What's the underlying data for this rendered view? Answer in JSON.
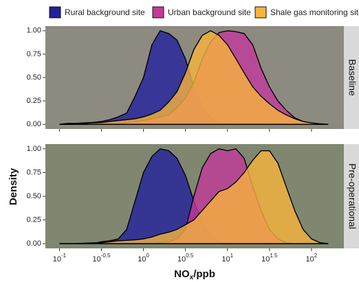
{
  "chart_data": {
    "type": "density",
    "x_label": [
      "NO",
      "x",
      "/ppb"
    ],
    "y_label": "Density",
    "log_x": true,
    "xlim": [
      0.068,
      243
    ],
    "xticks": [
      {
        "value": 0.1,
        "label": "10",
        "exponent": "-1"
      },
      {
        "value": 0.316,
        "label": "10",
        "exponent": "-0.5"
      },
      {
        "value": 1,
        "label": "10",
        "exponent": "0"
      },
      {
        "value": 3.16,
        "label": "10",
        "exponent": "0.5"
      },
      {
        "value": 10,
        "label": "10",
        "exponent": "1"
      },
      {
        "value": 31.6,
        "label": "10",
        "exponent": "1.5"
      },
      {
        "value": 100,
        "label": "10",
        "exponent": "2"
      }
    ],
    "ylim": [
      -0.05,
      1.05
    ],
    "yticks": [
      {
        "value": 0,
        "label": "0.00"
      },
      {
        "value": 0.25,
        "label": "0.25"
      },
      {
        "value": 0.5,
        "label": "0.50"
      },
      {
        "value": 0.75,
        "label": "0.75"
      },
      {
        "value": 1,
        "label": "1.00"
      }
    ],
    "series": [
      {
        "name": "Rural background site",
        "color": "#23209c"
      },
      {
        "name": "Urban background site",
        "color": "#c23a9b"
      },
      {
        "name": "Shale gas monitoring site",
        "color": "#f7b43c"
      }
    ],
    "x": [
      0.1,
      0.126,
      0.158,
      0.2,
      0.251,
      0.316,
      0.398,
      0.501,
      0.631,
      0.794,
      1,
      1.26,
      1.58,
      2,
      2.51,
      3.16,
      3.98,
      5.01,
      6.31,
      7.94,
      10,
      12.6,
      15.8,
      20,
      25.1,
      31.6,
      39.8,
      50.1,
      63.1,
      79.4,
      100,
      126,
      158
    ],
    "panels": [
      {
        "label": "Baseline",
        "values": [
          [
            0,
            0.005,
            0.01,
            0.015,
            0.02,
            0.03,
            0.05,
            0.08,
            0.12,
            0.3,
            0.5,
            0.85,
            1.0,
            0.97,
            0.9,
            0.7,
            0.4,
            0.18,
            0.07,
            0.02,
            0.005,
            0,
            0,
            0,
            0,
            0,
            0,
            0,
            0,
            0,
            0,
            0,
            0
          ],
          [
            0,
            0,
            0,
            0,
            0,
            0,
            0,
            0,
            0.02,
            0.03,
            0.04,
            0.06,
            0.08,
            0.1,
            0.18,
            0.28,
            0.45,
            0.7,
            0.88,
            0.98,
            1.0,
            0.99,
            0.97,
            0.85,
            0.6,
            0.4,
            0.25,
            0.15,
            0.07,
            0.03,
            0.01,
            0,
            0
          ],
          [
            0,
            0.01,
            0.01,
            0.01,
            0.015,
            0.02,
            0.03,
            0.04,
            0.05,
            0.06,
            0.08,
            0.11,
            0.15,
            0.24,
            0.35,
            0.55,
            0.8,
            0.95,
            1.0,
            0.95,
            0.85,
            0.7,
            0.55,
            0.4,
            0.3,
            0.22,
            0.15,
            0.1,
            0.06,
            0.03,
            0.015,
            0.005,
            0
          ]
        ]
      },
      {
        "label": "Pre-operational",
        "values": [
          [
            0,
            0,
            0,
            0,
            0,
            0.02,
            0.03,
            0.05,
            0.15,
            0.45,
            0.75,
            0.92,
            1.0,
            0.98,
            0.9,
            0.72,
            0.45,
            0.22,
            0.08,
            0.02,
            0,
            0,
            0,
            0,
            0,
            0,
            0,
            0,
            0,
            0,
            0,
            0,
            0
          ],
          [
            0,
            0,
            0,
            0,
            0,
            0,
            0,
            0,
            0,
            0,
            0,
            0,
            0.01,
            0.02,
            0.05,
            0.15,
            0.5,
            0.8,
            0.95,
            1.0,
            0.98,
            1.0,
            0.9,
            0.6,
            0.35,
            0.15,
            0.05,
            0.01,
            0,
            0,
            0,
            0,
            0
          ],
          [
            0,
            0,
            0,
            0.005,
            0.008,
            0.01,
            0.02,
            0.03,
            0.035,
            0.04,
            0.05,
            0.07,
            0.1,
            0.12,
            0.15,
            0.2,
            0.25,
            0.35,
            0.45,
            0.55,
            0.58,
            0.65,
            0.75,
            0.88,
            0.98,
            0.98,
            0.85,
            0.6,
            0.35,
            0.15,
            0.05,
            0.01,
            0
          ]
        ]
      }
    ]
  }
}
